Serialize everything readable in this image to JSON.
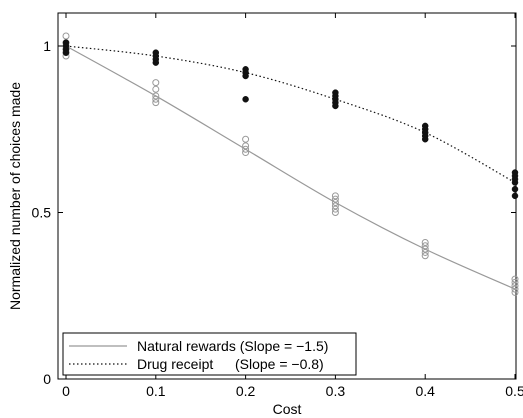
{
  "chart_data": {
    "type": "scatter",
    "xlabel": "Cost",
    "ylabel": "Normalized number of choices made",
    "xlim": [
      -0.01,
      0.5
    ],
    "ylim": [
      0,
      1.08
    ],
    "x_ticks": [
      "0",
      "0.1",
      "0.2",
      "0.3",
      "0.4",
      "0.5"
    ],
    "y_ticks": [
      "0",
      "0.5",
      "1"
    ],
    "x_tick_values": [
      0,
      0.1,
      0.2,
      0.3,
      0.4,
      0.5
    ],
    "y_tick_values": [
      0,
      0.5,
      1
    ],
    "grid": false,
    "legend_position": "bottom-left",
    "series": [
      {
        "name": "Natural rewards (Slope = −1.5)",
        "line_style": "solid",
        "marker": "open-circle",
        "color": "#999999",
        "points": [
          {
            "x": 0,
            "y": [
              1.03,
              1.01,
              1.0,
              0.99,
              0.98,
              0.97
            ]
          },
          {
            "x": 0.1,
            "y": [
              0.89,
              0.87,
              0.85,
              0.84,
              0.83
            ]
          },
          {
            "x": 0.2,
            "y": [
              0.72,
              0.7,
              0.69,
              0.68
            ]
          },
          {
            "x": 0.3,
            "y": [
              0.55,
              0.54,
              0.53,
              0.52,
              0.51,
              0.5
            ]
          },
          {
            "x": 0.4,
            "y": [
              0.41,
              0.4,
              0.39,
              0.38,
              0.37
            ]
          },
          {
            "x": 0.5,
            "y": [
              0.3,
              0.29,
              0.28,
              0.27,
              0.26
            ]
          }
        ],
        "fit": {
          "x": [
            0,
            0.1,
            0.2,
            0.3,
            0.4,
            0.5
          ],
          "y": [
            1.0,
            0.85,
            0.69,
            0.53,
            0.39,
            0.27
          ]
        }
      },
      {
        "name": "Drug receipt",
        "slope_label": "(Slope = −0.8)",
        "line_style": "dotted",
        "marker": "filled-circle",
        "color": "#111111",
        "points": [
          {
            "x": 0,
            "y": [
              1.01,
              1.0,
              0.99,
              0.98
            ]
          },
          {
            "x": 0.1,
            "y": [
              0.98,
              0.97,
              0.96,
              0.95
            ]
          },
          {
            "x": 0.2,
            "y": [
              0.93,
              0.92,
              0.91,
              0.84
            ]
          },
          {
            "x": 0.3,
            "y": [
              0.86,
              0.85,
              0.84,
              0.83,
              0.82
            ]
          },
          {
            "x": 0.4,
            "y": [
              0.76,
              0.75,
              0.74,
              0.73,
              0.72
            ]
          },
          {
            "x": 0.5,
            "y": [
              0.62,
              0.61,
              0.6,
              0.59,
              0.57,
              0.55
            ]
          }
        ],
        "fit": {
          "x": [
            0,
            0.1,
            0.2,
            0.3,
            0.4,
            0.5
          ],
          "y": [
            1.0,
            0.97,
            0.92,
            0.84,
            0.74,
            0.59
          ]
        }
      }
    ]
  }
}
